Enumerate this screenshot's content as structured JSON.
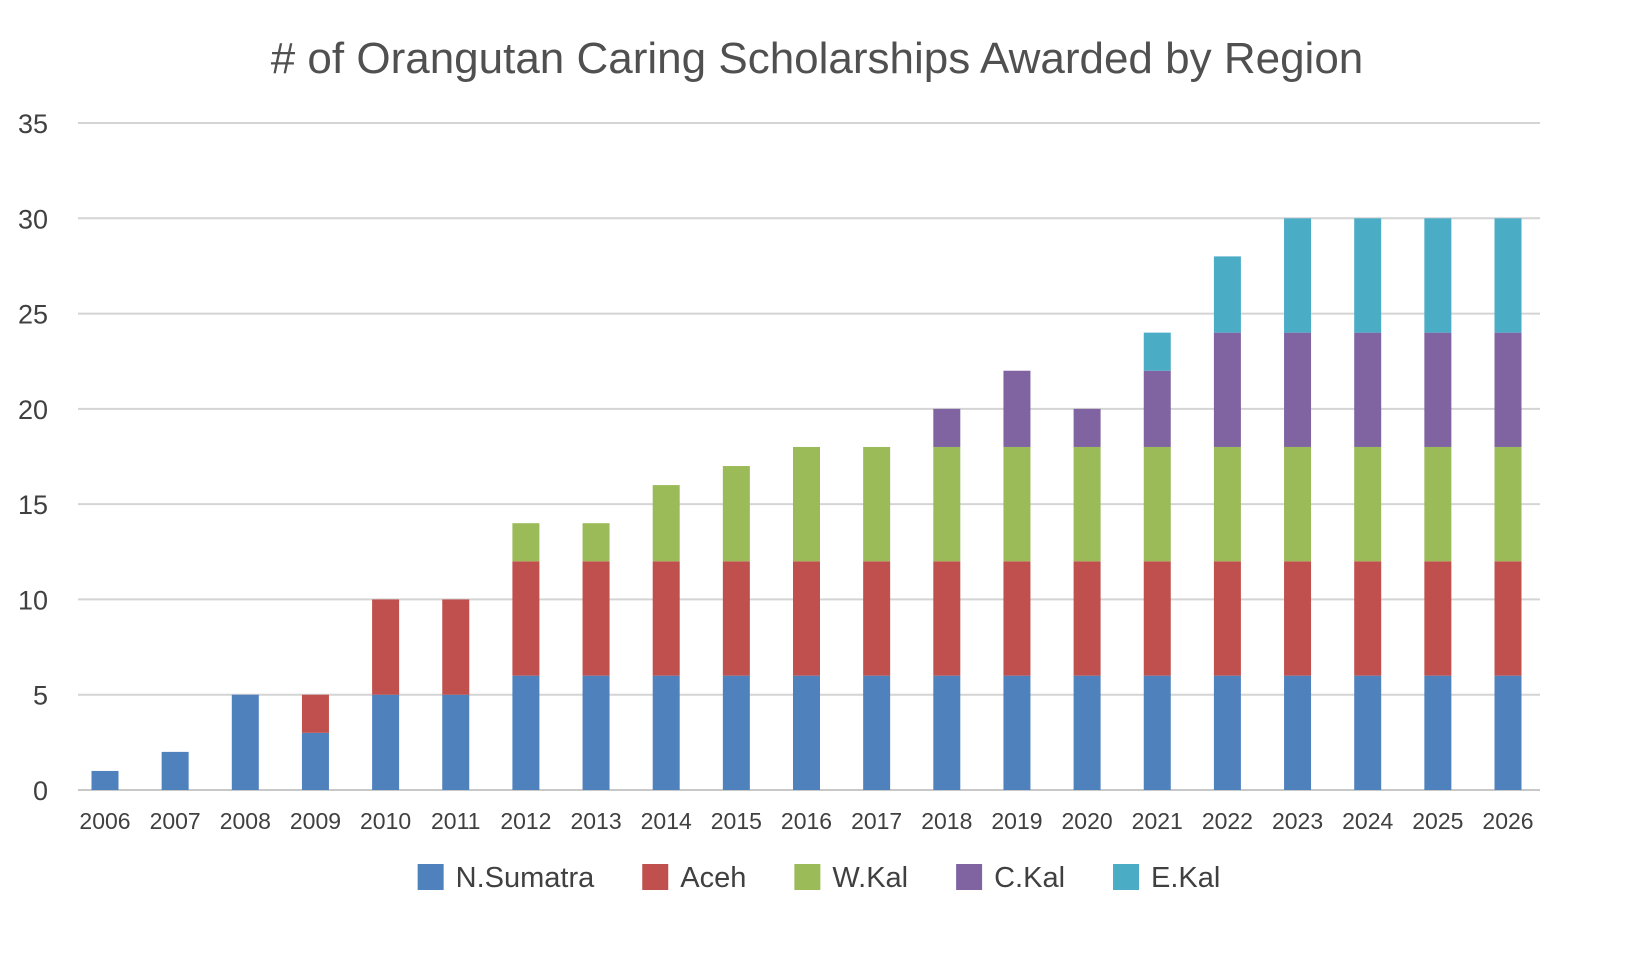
{
  "chart_data": {
    "type": "bar",
    "stacked": true,
    "title": "# of Orangutan Caring Scholarships Awarded by Region",
    "xlabel": "",
    "ylabel": "",
    "ylim": [
      0,
      35
    ],
    "yticks": [
      0,
      5,
      10,
      15,
      20,
      25,
      30,
      35
    ],
    "grid": true,
    "legend_position": "bottom",
    "categories": [
      "2006",
      "2007",
      "2008",
      "2009",
      "2010",
      "2011",
      "2012",
      "2013",
      "2014",
      "2015",
      "2016",
      "2017",
      "2018",
      "2019",
      "2020",
      "2021",
      "2022",
      "2023",
      "2024",
      "2025",
      "2026"
    ],
    "series": [
      {
        "name": "N.Sumatra",
        "color": "#4f81bd",
        "values": [
          1,
          2,
          5,
          3,
          5,
          5,
          6,
          6,
          6,
          6,
          6,
          6,
          6,
          6,
          6,
          6,
          6,
          6,
          6,
          6,
          6
        ]
      },
      {
        "name": "Aceh",
        "color": "#c0504d",
        "values": [
          0,
          0,
          0,
          2,
          5,
          5,
          6,
          6,
          6,
          6,
          6,
          6,
          6,
          6,
          6,
          6,
          6,
          6,
          6,
          6,
          6
        ]
      },
      {
        "name": "W.Kal",
        "color": "#9bbb59",
        "values": [
          0,
          0,
          0,
          0,
          0,
          0,
          2,
          2,
          4,
          5,
          6,
          6,
          6,
          6,
          6,
          6,
          6,
          6,
          6,
          6,
          6
        ]
      },
      {
        "name": "C.Kal",
        "color": "#8064a2",
        "values": [
          0,
          0,
          0,
          0,
          0,
          0,
          0,
          0,
          0,
          0,
          0,
          0,
          2,
          4,
          2,
          4,
          6,
          6,
          6,
          6,
          6
        ]
      },
      {
        "name": "E.Kal",
        "color": "#4bacc6",
        "values": [
          0,
          0,
          0,
          0,
          0,
          0,
          0,
          0,
          0,
          0,
          0,
          0,
          0,
          0,
          0,
          2,
          4,
          6,
          6,
          6,
          6
        ]
      }
    ]
  }
}
